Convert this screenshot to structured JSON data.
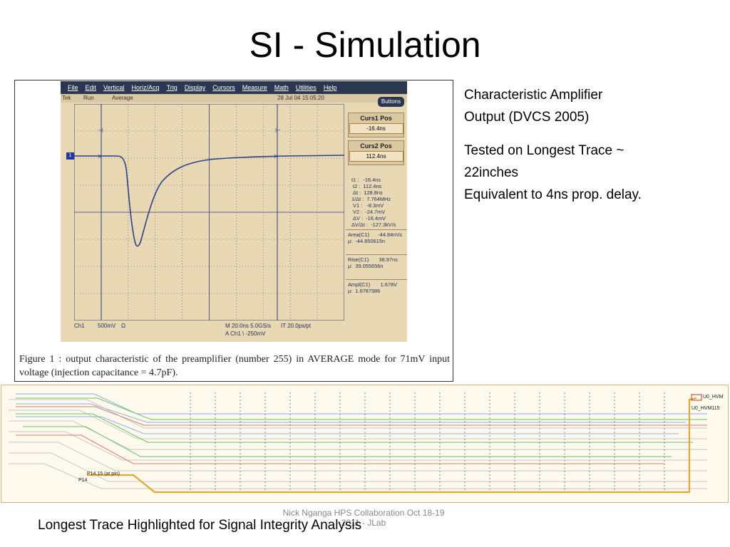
{
  "slide": {
    "title": "SI - Simulation",
    "side_text": {
      "line1": "Characteristic Amplifier",
      "line2": "Output (DVCS 2005)",
      "line3": "Tested on Longest Trace ~",
      "line4": "22inches",
      "line5": "Equivalent to 4ns prop. delay."
    },
    "bottom_caption": "Longest Trace Highlighted for Signal Integrity Analysis",
    "footer": {
      "line1": "Nick Nganga HPS Collaboration Oct 18-19",
      "line2": "2011 - JLab"
    }
  },
  "figure_caption": "Figure 1 : output characteristic of the preamplifier (number 255) in AVERAGE mode for 71mV input voltage (injection capacitance = 4.7pF).",
  "scope": {
    "menu": [
      "File",
      "Edit",
      "Vertical",
      "Horiz/Acq",
      "Trig",
      "Display",
      "Cursors",
      "Measure",
      "Math",
      "Utilities",
      "Help"
    ],
    "status": {
      "tek": "Tek",
      "run": "Run",
      "mode": "Average",
      "datetime": "28 Jul 04 15:05:20"
    },
    "buttons_label": "Buttons",
    "curs1": {
      "title": "Curs1 Pos",
      "value": "-16.4ns"
    },
    "curs2": {
      "title": "Curs2 Pos",
      "value": "112.4ns"
    },
    "cursor_readout": "t1 :   -16.4ns\n t2 :  112.4ns\n Δt :  128.8ns\n1/Δt :  7.764MHz\n V1 :   -8.3mV\n V2 :  -24.7mV\n ΔV :  -16.4mV\nΔV/Δt :  -127.3kV/s",
    "area": "Area(C1)      -44.84nVs\nμ:  -44.850615n",
    "rise": "Rise(C1)       38.97ns\nμ:  39.055656n",
    "ampl": "Ampl(C1)       1.678V\nμ:  1.6787986",
    "channel_marker": "1",
    "bottom": {
      "ch": "Ch1",
      "scale": "500mV",
      "ohm": "Ω",
      "timebase": "M 20.0ns 5.0GS/s",
      "interval": "IT 20.0ps/pt",
      "trigger": "A  Ch1  \\  -250mV"
    }
  },
  "pcb": {
    "label_left": "P14.15 (at pin)",
    "label_left_small": "P14",
    "label_right": "U0_HVM",
    "label_right_small": "U0_HVM115",
    "colors": {
      "highlight": "#e3a832",
      "trace_blue": "#8fb0e6",
      "trace_green": "#6fbf6a",
      "trace_red": "#d77b6b",
      "trace_gray": "#b7b7b7"
    }
  },
  "colors": {
    "scope_bg": "#e8d9b4",
    "menubar": "#2b3650",
    "waveform": "#2b3f8a",
    "grid": "#2f3f7a"
  }
}
